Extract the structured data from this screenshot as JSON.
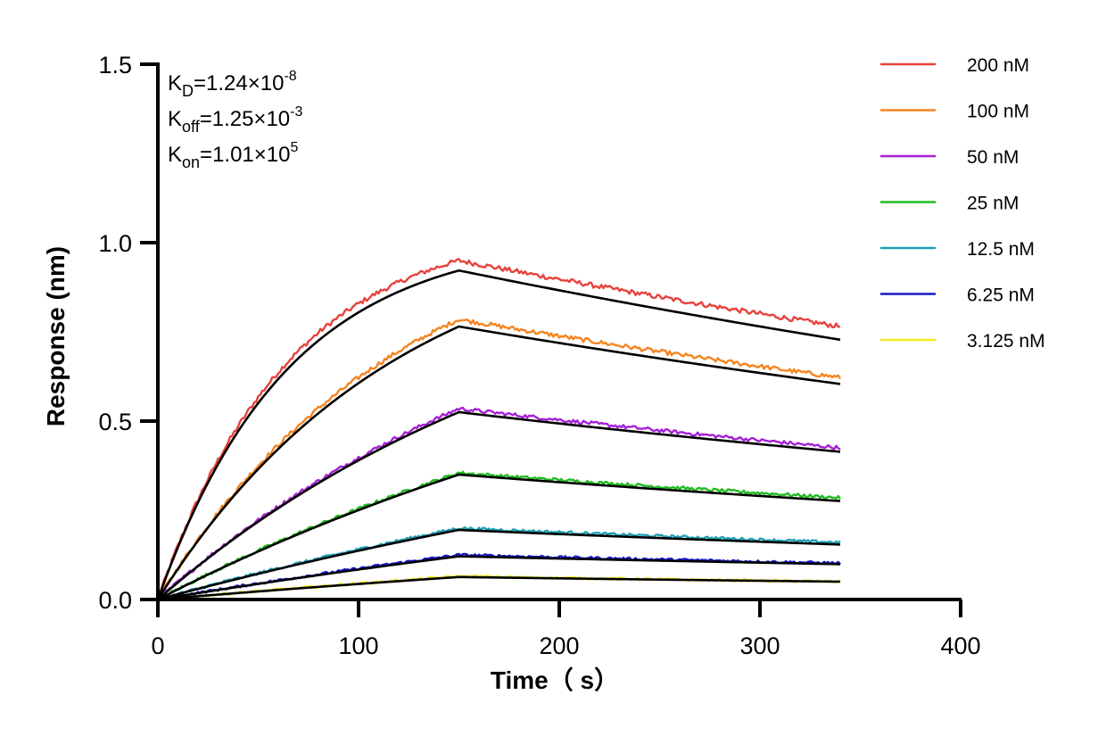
{
  "chart_data": {
    "type": "line",
    "title": "",
    "xlabel": "Time（ s）",
    "ylabel": "Response (nm)",
    "xlim": [
      0,
      400
    ],
    "ylim": [
      0,
      1.5
    ],
    "x_ticks": [
      "0",
      "100",
      "200",
      "300",
      "400"
    ],
    "y_ticks": [
      "0.0",
      "0.5",
      "1.0",
      "1.5"
    ],
    "grid": false,
    "legend_position": "top-right",
    "association_end_s": 150,
    "data_end_s": 340,
    "annotations": [
      {
        "name": "kd",
        "main": "K",
        "sub": "D",
        "text": "=1.24×10",
        "sup": "-8"
      },
      {
        "name": "koff",
        "main": "K",
        "sub": "off",
        "text": "=1.25×10",
        "sup": "-3"
      },
      {
        "name": "kon",
        "main": "K",
        "sub": "on",
        "text": "=1.01×10",
        "sup": "5"
      }
    ],
    "series": [
      {
        "name": "200 nM",
        "color": "#e8423c",
        "peak": 0.95,
        "end": 0.765,
        "fit_peak": 0.922,
        "fit_end": 0.728
      },
      {
        "name": "100 nM",
        "color": "#f5841f",
        "peak": 0.785,
        "end": 0.622,
        "fit_peak": 0.765,
        "fit_end": 0.604
      },
      {
        "name": "50 nM",
        "color": "#a51fd6",
        "peak": 0.535,
        "end": 0.425,
        "fit_peak": 0.525,
        "fit_end": 0.414
      },
      {
        "name": "25 nM",
        "color": "#1fbb1f",
        "peak": 0.355,
        "end": 0.285,
        "fit_peak": 0.35,
        "fit_end": 0.276
      },
      {
        "name": "12.5 nM",
        "color": "#1fa0b4",
        "peak": 0.2,
        "end": 0.16,
        "fit_peak": 0.195,
        "fit_end": 0.154
      },
      {
        "name": "6.25 nM",
        "color": "#1919c8",
        "peak": 0.125,
        "end": 0.102,
        "fit_peak": 0.121,
        "fit_end": 0.099
      },
      {
        "name": "3.125 nM",
        "color": "#f0ec1e",
        "peak": 0.065,
        "end": 0.05,
        "fit_peak": 0.063,
        "fit_end": 0.05
      }
    ],
    "fit_color": "#000000"
  }
}
